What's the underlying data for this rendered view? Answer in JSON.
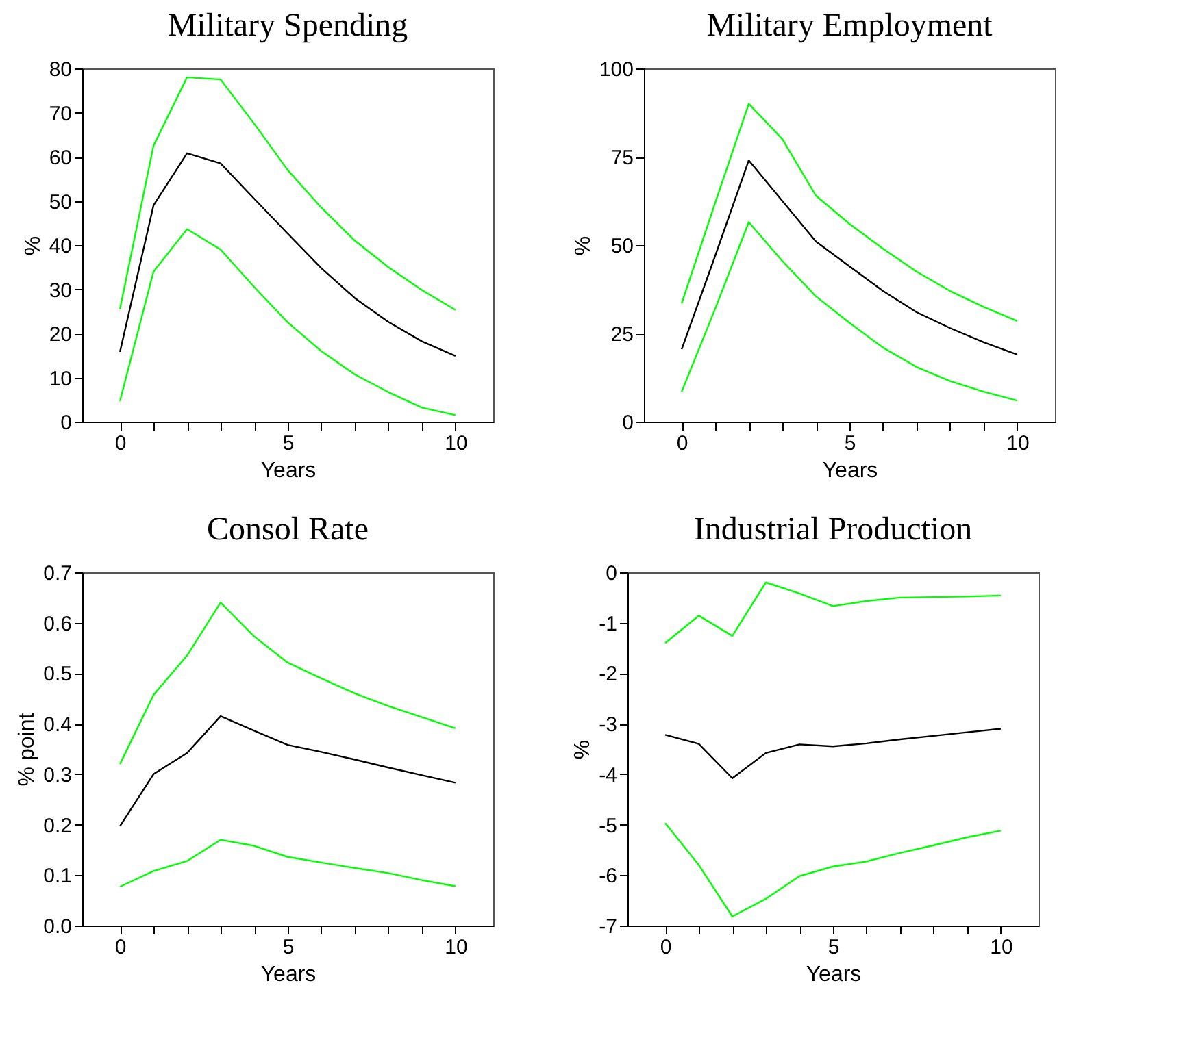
{
  "chart_data": [
    {
      "type": "line",
      "title": "Military Spending",
      "xlabel": "Years",
      "ylabel": "%",
      "x": [
        0,
        1,
        2,
        3,
        4,
        5,
        6,
        7,
        8,
        9,
        10
      ],
      "xlim": [
        -1.125,
        11.125
      ],
      "xticks": [
        0,
        {
          "value": 1,
          "label": null
        },
        {
          "value": 2,
          "label": null
        },
        {
          "value": 3,
          "label": null
        },
        {
          "value": 4,
          "label": null
        },
        5,
        {
          "value": 6,
          "label": null
        },
        {
          "value": 7,
          "label": null
        },
        {
          "value": 8,
          "label": null
        },
        {
          "value": 9,
          "label": null
        },
        10
      ],
      "ylim": [
        0,
        80
      ],
      "yticks": [
        0,
        10,
        20,
        30,
        40,
        50,
        60,
        70,
        80
      ],
      "grid": false,
      "series": [
        {
          "color": "#000000",
          "values": [
            15.8,
            49,
            60.8,
            58.5,
            50.5,
            42.6,
            34.8,
            28,
            22.6,
            18.2,
            14.9
          ]
        },
        {
          "color": "#00ff00",
          "values": [
            25.5,
            62.5,
            78,
            77.5,
            67.5,
            57,
            48.5,
            41,
            35,
            29.8,
            25.3
          ]
        },
        {
          "color": "#00ff00",
          "values": [
            4.7,
            34,
            43.6,
            39,
            30.5,
            22.5,
            16,
            10.7,
            6.7,
            3.2,
            1.5
          ]
        }
      ]
    },
    {
      "type": "line",
      "title": "Military Employment",
      "xlabel": "Years",
      "ylabel": "%",
      "x": [
        0,
        1,
        2,
        3,
        4,
        5,
        6,
        7,
        8,
        9,
        10
      ],
      "xlim": [
        -1.125,
        11.125
      ],
      "xticks": [
        0,
        {
          "value": 1,
          "label": null
        },
        {
          "value": 2,
          "label": null
        },
        {
          "value": 3,
          "label": null
        },
        {
          "value": 4,
          "label": null
        },
        5,
        {
          "value": 6,
          "label": null
        },
        {
          "value": 7,
          "label": null
        },
        {
          "value": 8,
          "label": null
        },
        {
          "value": 9,
          "label": null
        },
        10
      ],
      "ylim": [
        0,
        100
      ],
      "yticks": [
        0,
        25,
        50,
        75,
        100
      ],
      "grid": false,
      "series": [
        {
          "color": "#000000",
          "values": [
            20.5,
            47,
            74,
            62.5,
            51,
            44,
            37,
            31,
            26.5,
            22.5,
            19
          ]
        },
        {
          "color": "#00ff00",
          "values": [
            33.5,
            62,
            90,
            80,
            64,
            56,
            49,
            42.5,
            37,
            32.5,
            28.5
          ]
        },
        {
          "color": "#00ff00",
          "values": [
            8.5,
            32,
            56.5,
            45.5,
            35.5,
            28,
            21,
            15.5,
            11.5,
            8.5,
            6
          ]
        }
      ]
    },
    {
      "type": "line",
      "title": "Consol Rate",
      "xlabel": "Years",
      "ylabel": "% point",
      "x": [
        0,
        1,
        2,
        3,
        4,
        5,
        6,
        7,
        8,
        9,
        10
      ],
      "xlim": [
        -1.125,
        11.125
      ],
      "xticks": [
        0,
        {
          "value": 1,
          "label": null
        },
        {
          "value": 2,
          "label": null
        },
        {
          "value": 3,
          "label": null
        },
        {
          "value": 4,
          "label": null
        },
        5,
        {
          "value": 6,
          "label": null
        },
        {
          "value": 7,
          "label": null
        },
        {
          "value": 8,
          "label": null
        },
        {
          "value": 9,
          "label": null
        },
        10
      ],
      "ylim": [
        0,
        0.7
      ],
      "yticks": [
        {
          "value": 0,
          "label": "0.0"
        },
        0.1,
        0.2,
        0.3,
        0.4,
        0.5,
        0.6,
        0.7
      ],
      "grid": false,
      "series": [
        {
          "color": "#000000",
          "values": [
            0.197,
            0.3,
            0.342,
            0.415,
            0.386,
            0.358,
            0.344,
            0.329,
            0.313,
            0.298,
            0.283
          ]
        },
        {
          "color": "#00ff00",
          "values": [
            0.32,
            0.457,
            0.535,
            0.64,
            0.573,
            0.521,
            0.49,
            0.46,
            0.435,
            0.413,
            0.391
          ]
        },
        {
          "color": "#00ff00",
          "values": [
            0.077,
            0.108,
            0.128,
            0.17,
            0.158,
            0.136,
            0.125,
            0.114,
            0.104,
            0.09,
            0.078
          ]
        }
      ]
    },
    {
      "type": "line",
      "title": "Industrial Production",
      "xlabel": "Years",
      "ylabel": "%",
      "x": [
        0,
        1,
        2,
        3,
        4,
        5,
        6,
        7,
        8,
        9,
        10
      ],
      "xlim": [
        -1.125,
        11.125
      ],
      "xticks": [
        0,
        {
          "value": 1,
          "label": null
        },
        {
          "value": 2,
          "label": null
        },
        {
          "value": 3,
          "label": null
        },
        {
          "value": 4,
          "label": null
        },
        5,
        {
          "value": 6,
          "label": null
        },
        {
          "value": 7,
          "label": null
        },
        {
          "value": 8,
          "label": null
        },
        {
          "value": 9,
          "label": null
        },
        10
      ],
      "ylim": [
        -7,
        0
      ],
      "yticks": [
        -7,
        -6,
        -5,
        -4,
        -3,
        -2,
        -1,
        0
      ],
      "grid": false,
      "series": [
        {
          "color": "#000000",
          "values": [
            -3.22,
            -3.4,
            -4.08,
            -3.58,
            -3.41,
            -3.45,
            -3.39,
            -3.31,
            -3.24,
            -3.17,
            -3.1
          ]
        },
        {
          "color": "#00ff00",
          "values": [
            -1.4,
            -0.86,
            -1.26,
            -0.2,
            -0.42,
            -0.67,
            -0.57,
            -0.5,
            -0.49,
            -0.48,
            -0.46
          ]
        },
        {
          "color": "#00ff00",
          "values": [
            -4.97,
            -5.8,
            -6.82,
            -6.47,
            -6.02,
            -5.83,
            -5.73,
            -5.56,
            -5.41,
            -5.25,
            -5.12
          ]
        }
      ]
    }
  ]
}
